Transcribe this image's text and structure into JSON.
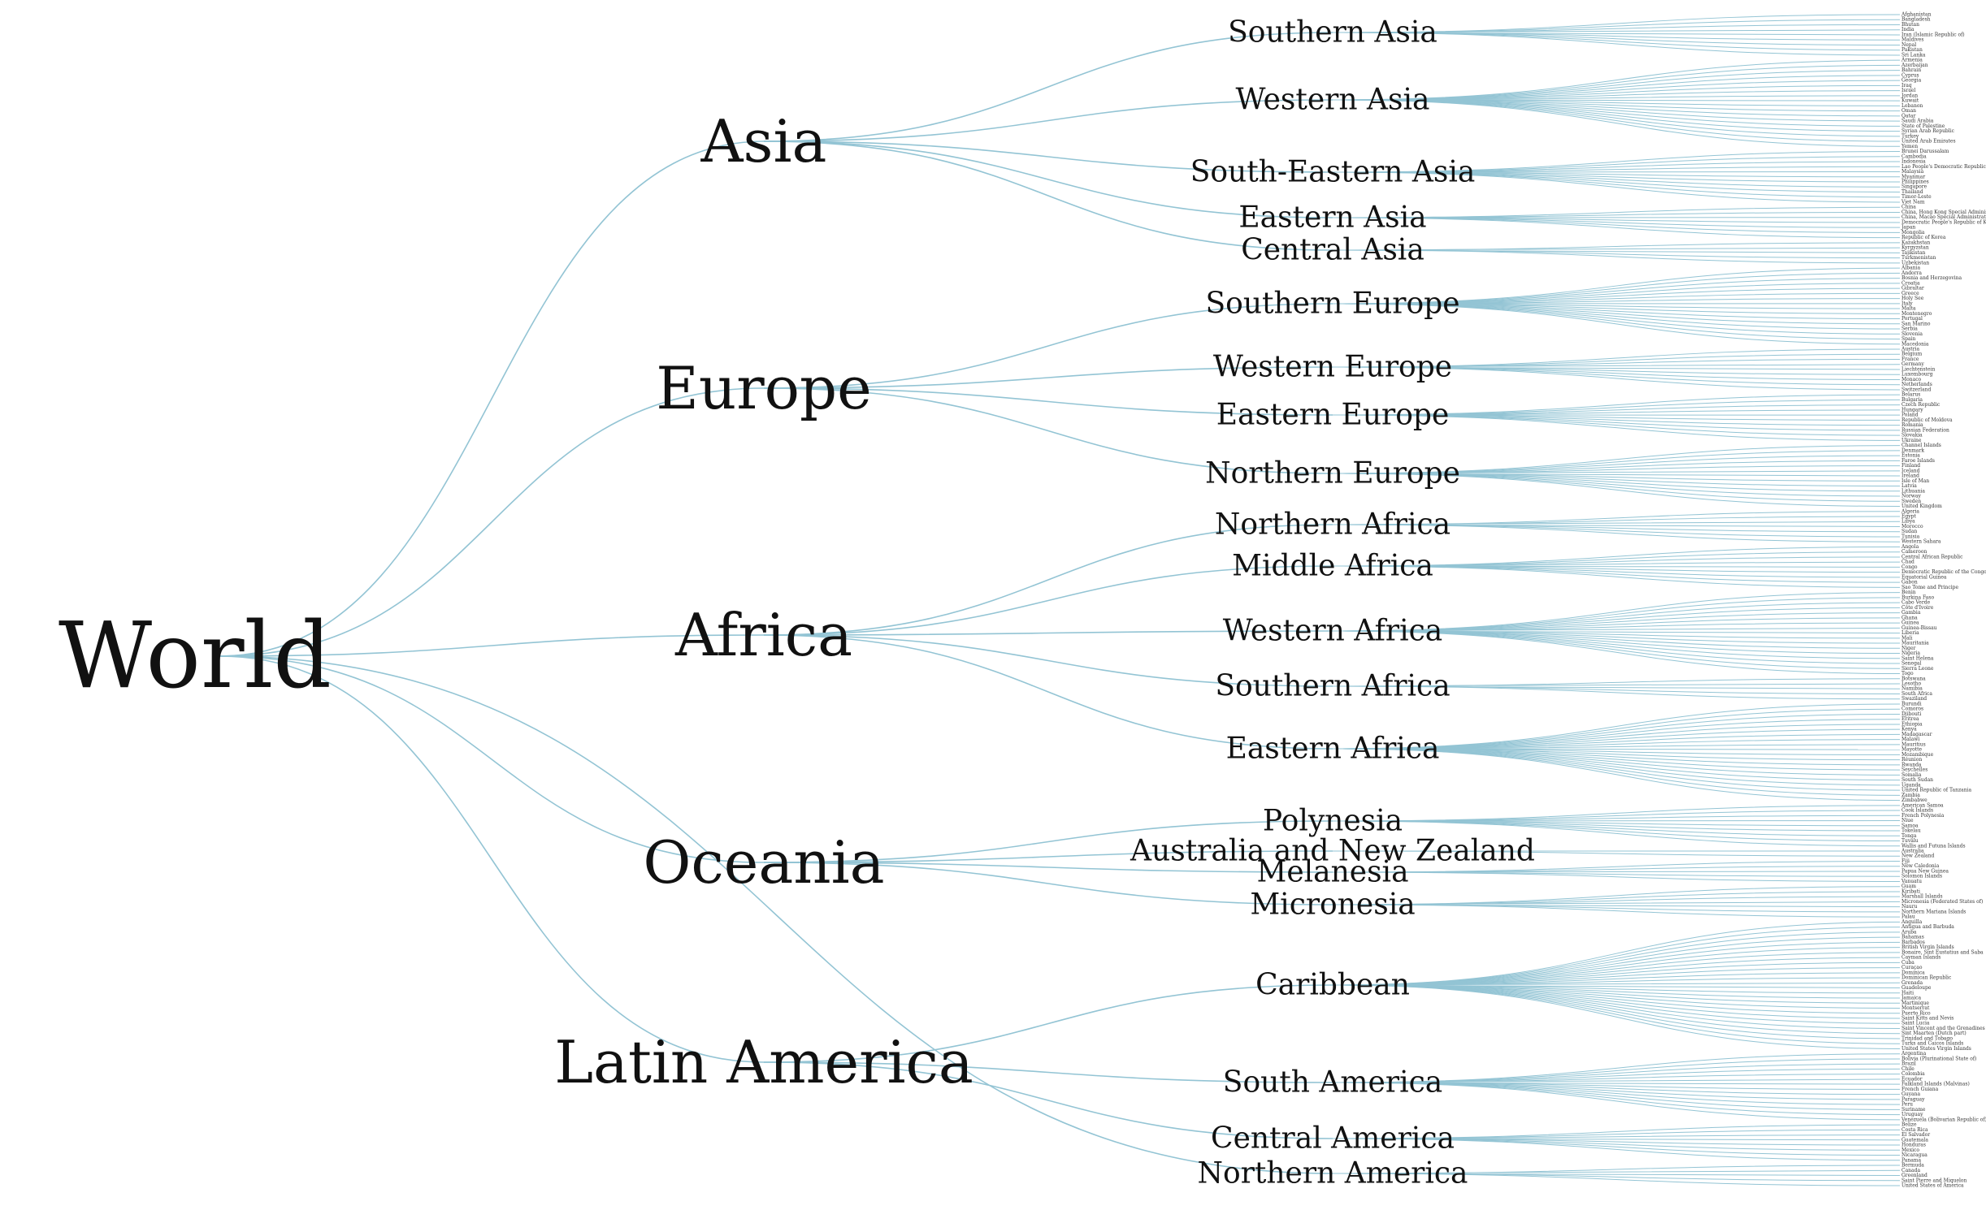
{
  "root": "World",
  "continents": [
    {
      "name": "Asia",
      "regions": [
        {
          "name": "Southern Asia",
          "countries": [
            "Afghanistan",
            "Bangladesh",
            "Bhutan",
            "India",
            "Iran (Islamic Republic of)",
            "Maldives",
            "Nepal",
            "Pakistan",
            "Sri Lanka"
          ]
        },
        {
          "name": "Western Asia",
          "countries": [
            "Armenia",
            "Azerbaijan",
            "Bahrain",
            "Cyprus",
            "Georgia",
            "Iraq",
            "Israel",
            "Jordan",
            "Kuwait",
            "Lebanon",
            "Oman",
            "Qatar",
            "Saudi Arabia",
            "State of Palestine",
            "Syrian Arab Republic",
            "Turkey",
            "United Arab Emirates",
            "Yemen"
          ]
        },
        {
          "name": "South-Eastern Asia",
          "countries": [
            "Brunei Darussalam",
            "Cambodia",
            "Indonesia",
            "Lao People's Democratic Republic",
            "Malaysia",
            "Myanmar",
            "Philippines",
            "Singapore",
            "Thailand",
            "Timor-Leste",
            "Viet Nam"
          ]
        },
        {
          "name": "Eastern Asia",
          "countries": [
            "China",
            "China, Hong Kong Special Administrative Region",
            "China, Macao Special Administrative Region",
            "Democratic People's Republic of Korea",
            "Japan",
            "Mongolia",
            "Republic of Korea"
          ]
        },
        {
          "name": "Central Asia",
          "countries": [
            "Kazakhstan",
            "Kyrgyzstan",
            "Tajikistan",
            "Turkmenistan",
            "Uzbekistan"
          ]
        }
      ]
    },
    {
      "name": "Europe",
      "regions": [
        {
          "name": "Southern Europe",
          "countries": [
            "Albania",
            "Andorra",
            "Bosnia and Herzegovina",
            "Croatia",
            "Gibraltar",
            "Greece",
            "Holy See",
            "Italy",
            "Malta",
            "Montenegro",
            "Portugal",
            "San Marino",
            "Serbia",
            "Slovenia",
            "Spain",
            "Macedonia"
          ]
        },
        {
          "name": "Western Europe",
          "countries": [
            "Austria",
            "Belgium",
            "France",
            "Germany",
            "Liechtenstein",
            "Luxembourg",
            "Monaco",
            "Netherlands",
            "Switzerland"
          ]
        },
        {
          "name": "Eastern Europe",
          "countries": [
            "Belarus",
            "Bulgaria",
            "Czech Republic",
            "Hungary",
            "Poland",
            "Republic of Moldova",
            "Romania",
            "Russian Federation",
            "Slovakia",
            "Ukraine"
          ]
        },
        {
          "name": "Northern Europe",
          "countries": [
            "Channel Islands",
            "Denmark",
            "Estonia",
            "Faroe Islands",
            "Finland",
            "Iceland",
            "Ireland",
            "Isle of Man",
            "Latvia",
            "Lithuania",
            "Norway",
            "Sweden",
            "United Kingdom"
          ]
        }
      ]
    },
    {
      "name": "Africa",
      "regions": [
        {
          "name": "Northern Africa",
          "countries": [
            "Algeria",
            "Egypt",
            "Libya",
            "Morocco",
            "Sudan",
            "Tunisia",
            "Western Sahara"
          ]
        },
        {
          "name": "Middle Africa",
          "countries": [
            "Angola",
            "Cameroon",
            "Central African Republic",
            "Chad",
            "Congo",
            "Democratic Republic of the Congo",
            "Equatorial Guinea",
            "Gabon",
            "Sao Tome and Principe"
          ]
        },
        {
          "name": "Western Africa",
          "countries": [
            "Benin",
            "Burkina Faso",
            "Cabo Verde",
            "Côte d'Ivoire",
            "Gambia",
            "Ghana",
            "Guinea",
            "Guinea-Bissau",
            "Liberia",
            "Mali",
            "Mauritania",
            "Niger",
            "Nigeria",
            "Saint Helena",
            "Senegal",
            "Sierra Leone",
            "Togo"
          ]
        },
        {
          "name": "Southern Africa",
          "countries": [
            "Botswana",
            "Lesotho",
            "Namibia",
            "South Africa",
            "Swaziland"
          ]
        },
        {
          "name": "Eastern Africa",
          "countries": [
            "Burundi",
            "Comoros",
            "Djibouti",
            "Eritrea",
            "Ethiopia",
            "Kenya",
            "Madagascar",
            "Malawi",
            "Mauritius",
            "Mayotte",
            "Mozambique",
            "Réunion",
            "Rwanda",
            "Seychelles",
            "Somalia",
            "South Sudan",
            "Uganda",
            "United Republic of Tanzania",
            "Zambia",
            "Zimbabwe"
          ]
        }
      ]
    },
    {
      "name": "Oceania",
      "regions": [
        {
          "name": "Polynesia",
          "countries": [
            "American Samoa",
            "Cook Islands",
            "French Polynesia",
            "Niue",
            "Samoa",
            "Tokelau",
            "Tonga",
            "Tuvalu",
            "Wallis and Futuna Islands"
          ]
        },
        {
          "name": "Australia and New Zealand",
          "countries": [
            "Australia",
            "New Zealand"
          ]
        },
        {
          "name": "Melanesia",
          "countries": [
            "Fiji",
            "New Caledonia",
            "Papua New Guinea",
            "Solomon Islands",
            "Vanuatu"
          ]
        },
        {
          "name": "Micronesia",
          "countries": [
            "Guam",
            "Kiribati",
            "Marshall Islands",
            "Micronesia (Federated States of)",
            "Nauru",
            "Northern Mariana Islands",
            "Palau"
          ]
        }
      ]
    },
    {
      "name": "Latin America",
      "regions": [
        {
          "name": "Caribbean",
          "countries": [
            "Anguilla",
            "Antigua and Barbuda",
            "Aruba",
            "Bahamas",
            "Barbados",
            "British Virgin Islands",
            "Bonaire, Sint Eustatius and Saba",
            "Cayman Islands",
            "Cuba",
            "Curaçao",
            "Dominica",
            "Dominican Republic",
            "Grenada",
            "Guadeloupe",
            "Haiti",
            "Jamaica",
            "Martinique",
            "Montserrat",
            "Puerto Rico",
            "Saint Kitts and Nevis",
            "Saint Lucia",
            "Saint Vincent and the Grenadines",
            "Sint Maarten (Dutch part)",
            "Trinidad and Tobago",
            "Turks and Caicos Islands",
            "United States Virgin Islands"
          ]
        },
        {
          "name": "South America",
          "countries": [
            "Argentina",
            "Bolivia (Plurinational State of)",
            "Brazil",
            "Chile",
            "Colombia",
            "Ecuador",
            "Falkland Islands (Malvinas)",
            "French Guiana",
            "Guyana",
            "Paraguay",
            "Peru",
            "Suriname",
            "Uruguay",
            "Venezuela (Bolivarian Republic of)"
          ]
        },
        {
          "name": "Central America",
          "countries": [
            "Belize",
            "Costa Rica",
            "El Salvador",
            "Guatemala",
            "Honduras",
            "Mexico",
            "Nicaragua",
            "Panama"
          ]
        }
      ]
    },
    {
      "name": "",
      "regions": [
        {
          "name": "Northern America",
          "countries": [
            "Bermuda",
            "Canada",
            "Greenland",
            "Saint Pierre and Miquelon",
            "United States of America"
          ]
        }
      ]
    }
  ]
}
